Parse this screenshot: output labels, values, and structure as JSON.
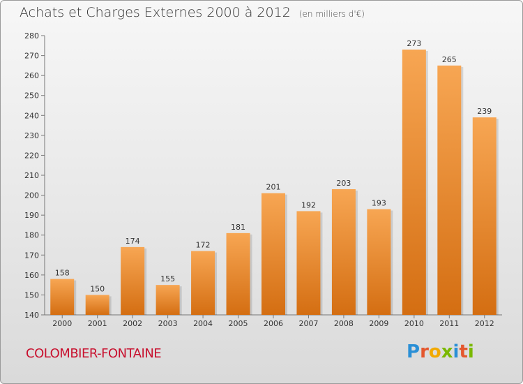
{
  "title": "Achats et Charges Externes 2000 à 2012",
  "title_unit": "(en milliers d'€)",
  "commune": "COLOMBIER-FONTAINE",
  "logo": {
    "letters": [
      "P",
      "r",
      "o",
      "x",
      "i",
      "t",
      "i"
    ],
    "colors": [
      "#2a8fd6",
      "#e4572e",
      "#f2a900",
      "#7ab800",
      "#2a8fd6",
      "#e4572e",
      "#7ab800"
    ]
  },
  "colors": {
    "bar_top": "#f7a653",
    "bar_bottom": "#d46e12",
    "commune": "#c8102e"
  },
  "chart_data": {
    "type": "bar",
    "title": "Achats et Charges Externes 2000 à 2012",
    "subtitle": "(en milliers d'€)",
    "xlabel": "",
    "ylabel": "",
    "ylim": [
      140,
      280
    ],
    "yticks": [
      140,
      150,
      160,
      170,
      180,
      190,
      200,
      210,
      220,
      230,
      240,
      250,
      260,
      270,
      280
    ],
    "grid": false,
    "categories": [
      "2000",
      "2001",
      "2002",
      "2003",
      "2004",
      "2005",
      "2006",
      "2007",
      "2008",
      "2009",
      "2010",
      "2011",
      "2012"
    ],
    "values": [
      158,
      150,
      174,
      155,
      172,
      181,
      201,
      192,
      203,
      193,
      273,
      265,
      239
    ]
  }
}
